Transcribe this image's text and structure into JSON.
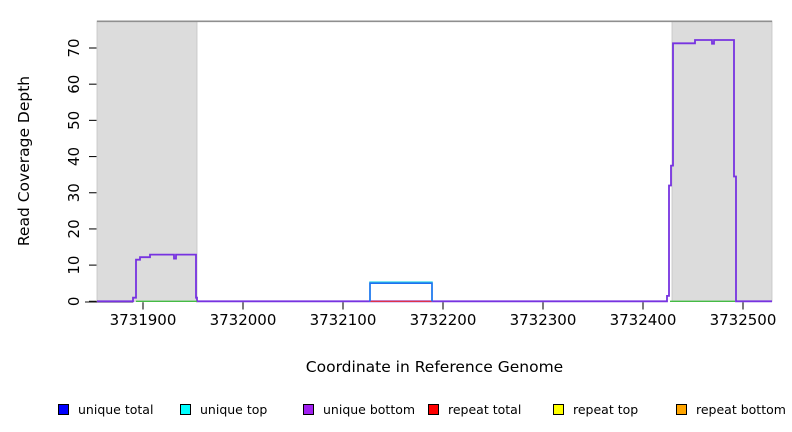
{
  "page": {
    "background": "#FFFFFF"
  },
  "chart_data": {
    "type": "line",
    "title": "",
    "xlabel": "Coordinate in Reference Genome",
    "ylabel": "Read Coverage Depth",
    "xlim": [
      3731854,
      3732529
    ],
    "ylim": [
      0,
      77.6
    ],
    "xticks": [
      3731900,
      3732000,
      3732100,
      3732200,
      3732300,
      3732400,
      3732500
    ],
    "yticks": [
      0,
      10,
      20,
      30,
      40,
      50,
      60,
      70
    ],
    "grid": false,
    "legend_position": "bottom",
    "shaded_regions": [
      {
        "name": "left-gray-region",
        "x0": 3731854,
        "x1": 3731954,
        "color": "#DCDCDC",
        "border": "#C4C4C4"
      },
      {
        "name": "right-gray-region",
        "x0": 3732429,
        "x1": 3732529,
        "color": "#DCDCDC",
        "border": "#C4C4C4"
      }
    ],
    "series": [
      {
        "name": "unique bottom",
        "color": "#7733E0",
        "width": 1.8,
        "points": [
          [
            3731854,
            0
          ],
          [
            3731890,
            0
          ],
          [
            3731890,
            1
          ],
          [
            3731893,
            1
          ],
          [
            3731893,
            11.5
          ],
          [
            3731897,
            11.5
          ],
          [
            3731897,
            12.2
          ],
          [
            3731907,
            12.2
          ],
          [
            3731907,
            12.9
          ],
          [
            3731931,
            12.9
          ],
          [
            3731931,
            11.8
          ],
          [
            3731933,
            11.8
          ],
          [
            3731933,
            12.9
          ],
          [
            3731953,
            12.9
          ],
          [
            3731953,
            1
          ],
          [
            3731954,
            1
          ],
          [
            3731954,
            0
          ],
          [
            3732424,
            0
          ],
          [
            3732424,
            1.5
          ],
          [
            3732426,
            1.5
          ],
          [
            3732426,
            32
          ],
          [
            3732428,
            32
          ],
          [
            3732428,
            37.5
          ],
          [
            3732430,
            37.5
          ],
          [
            3732430,
            71.3
          ],
          [
            3732452,
            71.3
          ],
          [
            3732452,
            72.2
          ],
          [
            3732469,
            72.2
          ],
          [
            3732469,
            71.2
          ],
          [
            3732471,
            71.2
          ],
          [
            3732471,
            72.2
          ],
          [
            3732491,
            72.2
          ],
          [
            3732491,
            34.5
          ],
          [
            3732493,
            34.5
          ],
          [
            3732493,
            0
          ],
          [
            3732529,
            0
          ]
        ]
      },
      {
        "name": "baseline green left",
        "color": "#44BB44",
        "width": 1.4,
        "points": [
          [
            3731893,
            0
          ],
          [
            3731954,
            0
          ]
        ]
      },
      {
        "name": "baseline green right",
        "color": "#44BB44",
        "width": 1.4,
        "points": [
          [
            3732427,
            0
          ],
          [
            3732492,
            0
          ]
        ]
      },
      {
        "name": "repeat total",
        "color": "#EE3333",
        "width": 1.2,
        "points": [
          [
            3732127,
            0
          ],
          [
            3732189,
            0
          ]
        ]
      },
      {
        "name": "unique top",
        "color": "#33D6E8",
        "width": 1.5,
        "points": [
          [
            3732127,
            0
          ],
          [
            3732127,
            5.3
          ],
          [
            3732189,
            5.3
          ],
          [
            3732189,
            0
          ]
        ]
      },
      {
        "name": "unique total",
        "color": "#2070F0",
        "width": 1.6,
        "points": [
          [
            3732127,
            0
          ],
          [
            3732127,
            5
          ],
          [
            3732189,
            5
          ],
          [
            3732189,
            0
          ]
        ]
      }
    ],
    "legend": [
      {
        "label": "unique total",
        "color": "#0000FF"
      },
      {
        "label": "unique top",
        "color": "#00FFFF"
      },
      {
        "label": "unique bottom",
        "color": "#A020F0"
      },
      {
        "label": "repeat total",
        "color": "#FF0000"
      },
      {
        "label": "repeat top",
        "color": "#FFFF00"
      },
      {
        "label": "repeat bottom",
        "color": "#FFA500"
      }
    ]
  }
}
